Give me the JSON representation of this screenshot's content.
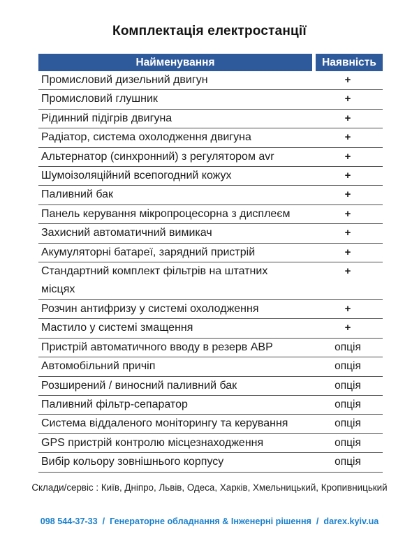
{
  "title": "Комплектація електростанції",
  "table": {
    "header": {
      "name": "Найменування",
      "availability": "Наявність"
    },
    "rows": [
      {
        "name": "Промисловий дизельний двигун",
        "availability": "+"
      },
      {
        "name": "Промисловий глушник",
        "availability": "+"
      },
      {
        "name": "Рідинний підігрів двигуна",
        "availability": "+"
      },
      {
        "name": "Радіатор, система охолодження двигуна",
        "availability": "+"
      },
      {
        "name": "Альтернатор (синхронний) з регулятором avr",
        "availability": "+"
      },
      {
        "name": "Шумоізоляційний всепогодний кожух",
        "availability": "+"
      },
      {
        "name": "Паливний бак",
        "availability": "+"
      },
      {
        "name": "Панель керування мікропроцесорна з дисплеєм",
        "availability": "+"
      },
      {
        "name": "Захисний автоматичний вимикач",
        "availability": "+"
      },
      {
        "name": "Акумуляторні батареї, зарядний пристрій",
        "availability": "+"
      },
      {
        "name": "Стандартний комплект фільтрів на штатних\nмісцях",
        "availability": "+"
      },
      {
        "name": "Розчин антифризу у системі охолодження",
        "availability": "+"
      },
      {
        "name": "Мастило у системі змащення",
        "availability": "+"
      },
      {
        "name": "Пристрій автоматичного вводу в резерв АВР",
        "availability": "опція"
      },
      {
        "name": "Автомобільний причіп",
        "availability": "опція"
      },
      {
        "name": "Розширений / виносний паливний бак",
        "availability": "опція"
      },
      {
        "name": "Паливний фільтр-сепаратор",
        "availability": "опція"
      },
      {
        "name": "Система віддаленого моніторингу та керування",
        "availability": "опція"
      },
      {
        "name": "GPS пристрій контролю місцезнаходження",
        "availability": "опція"
      },
      {
        "name": "Вибір кольору зовнішнього корпусу",
        "availability": "опція"
      }
    ]
  },
  "footer": {
    "service_line": "Склади/сервіс : Київ, Дніпро, Львів, Одеса, Харків, Хмельницький, Кропивницький",
    "contact_line": "098 544-37-33  /  Генераторне обладнання & Інженерні рішення  /  darex.kyiv.ua"
  },
  "colors": {
    "header_bg": "#2e5a9c",
    "contact_blue": "#1b80cd"
  }
}
